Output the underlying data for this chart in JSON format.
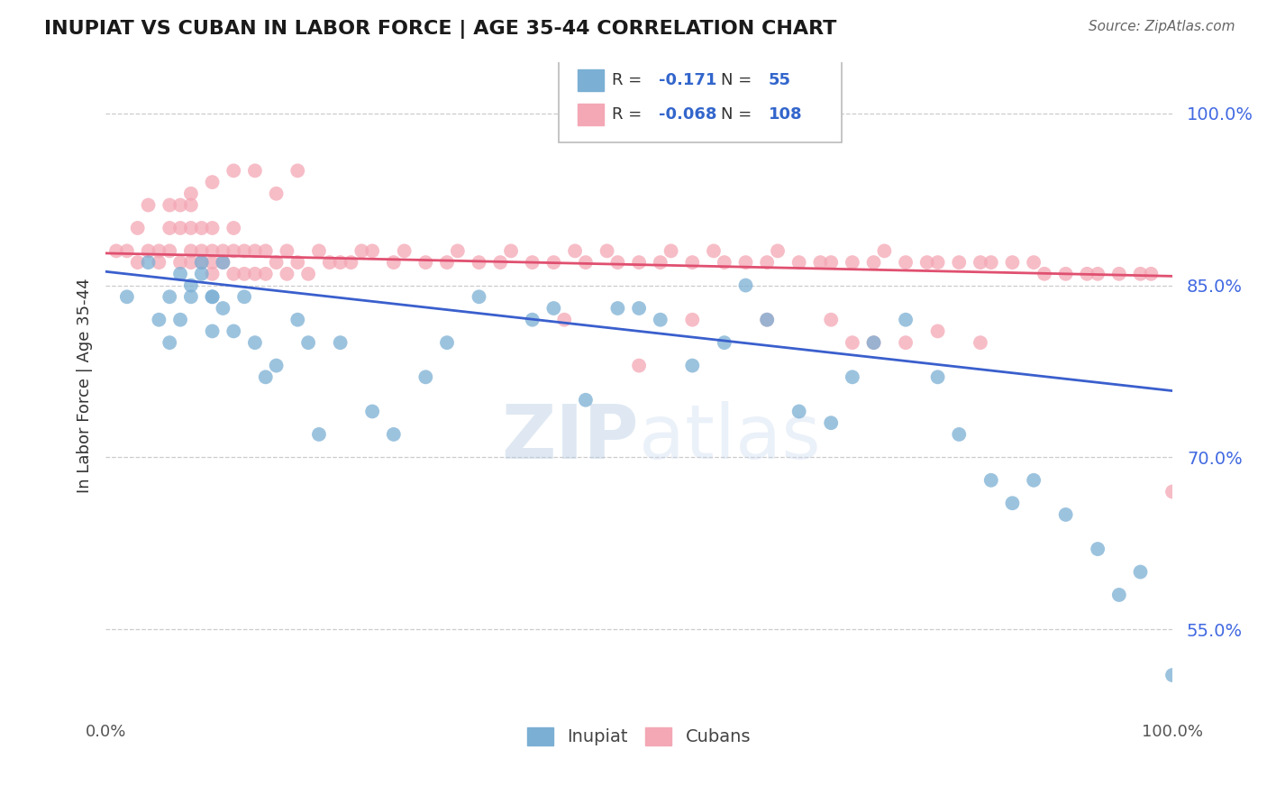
{
  "title": "INUPIAT VS CUBAN IN LABOR FORCE | AGE 35-44 CORRELATION CHART",
  "source": "Source: ZipAtlas.com",
  "ylabel": "In Labor Force | Age 35-44",
  "xlim": [
    0.0,
    1.0
  ],
  "ylim": [
    0.48,
    1.045
  ],
  "yticks": [
    0.55,
    0.7,
    0.85,
    1.0
  ],
  "ytick_labels": [
    "55.0%",
    "70.0%",
    "85.0%",
    "100.0%"
  ],
  "watermark": "ZIPatlas",
  "legend_r1": "-0.171",
  "legend_n1": "55",
  "legend_r2": "-0.068",
  "legend_n2": "108",
  "blue_color": "#7bafd4",
  "pink_color": "#f4a7b5",
  "trend_blue": "#3a5fcd",
  "trend_pink": "#e05070",
  "blue_trend_start": 0.862,
  "blue_trend_end": 0.758,
  "pink_trend_start": 0.878,
  "pink_trend_end": 0.858,
  "inupiat_x": [
    0.02,
    0.04,
    0.05,
    0.06,
    0.06,
    0.07,
    0.07,
    0.08,
    0.08,
    0.09,
    0.09,
    0.1,
    0.1,
    0.1,
    0.11,
    0.11,
    0.12,
    0.13,
    0.14,
    0.15,
    0.16,
    0.18,
    0.19,
    0.2,
    0.22,
    0.25,
    0.27,
    0.3,
    0.32,
    0.35,
    0.4,
    0.42,
    0.45,
    0.48,
    0.5,
    0.52,
    0.55,
    0.58,
    0.6,
    0.62,
    0.65,
    0.68,
    0.7,
    0.72,
    0.75,
    0.78,
    0.8,
    0.83,
    0.85,
    0.87,
    0.9,
    0.93,
    0.95,
    0.97,
    1.0
  ],
  "inupiat_y": [
    0.84,
    0.87,
    0.82,
    0.84,
    0.8,
    0.86,
    0.82,
    0.85,
    0.84,
    0.87,
    0.86,
    0.84,
    0.81,
    0.84,
    0.83,
    0.87,
    0.81,
    0.84,
    0.8,
    0.77,
    0.78,
    0.82,
    0.8,
    0.72,
    0.8,
    0.74,
    0.72,
    0.77,
    0.8,
    0.84,
    0.82,
    0.83,
    0.75,
    0.83,
    0.83,
    0.82,
    0.78,
    0.8,
    0.85,
    0.82,
    0.74,
    0.73,
    0.77,
    0.8,
    0.82,
    0.77,
    0.72,
    0.68,
    0.66,
    0.68,
    0.65,
    0.62,
    0.58,
    0.6,
    0.51
  ],
  "cuban_x": [
    0.01,
    0.02,
    0.03,
    0.03,
    0.04,
    0.04,
    0.05,
    0.05,
    0.06,
    0.06,
    0.06,
    0.07,
    0.07,
    0.07,
    0.08,
    0.08,
    0.08,
    0.08,
    0.09,
    0.09,
    0.09,
    0.1,
    0.1,
    0.1,
    0.1,
    0.11,
    0.11,
    0.12,
    0.12,
    0.12,
    0.13,
    0.13,
    0.14,
    0.14,
    0.15,
    0.15,
    0.16,
    0.17,
    0.17,
    0.18,
    0.19,
    0.2,
    0.21,
    0.22,
    0.23,
    0.24,
    0.25,
    0.27,
    0.28,
    0.3,
    0.32,
    0.33,
    0.35,
    0.37,
    0.38,
    0.4,
    0.42,
    0.44,
    0.45,
    0.47,
    0.48,
    0.5,
    0.52,
    0.53,
    0.55,
    0.57,
    0.58,
    0.6,
    0.62,
    0.63,
    0.65,
    0.67,
    0.68,
    0.7,
    0.72,
    0.73,
    0.75,
    0.77,
    0.78,
    0.8,
    0.82,
    0.83,
    0.85,
    0.87,
    0.88,
    0.9,
    0.92,
    0.93,
    0.95,
    0.97,
    0.98,
    1.0,
    0.08,
    0.1,
    0.12,
    0.14,
    0.16,
    0.18,
    0.5,
    0.7,
    0.43,
    0.55,
    0.62,
    0.68,
    0.72,
    0.75,
    0.78,
    0.82
  ],
  "cuban_y": [
    0.88,
    0.88,
    0.87,
    0.9,
    0.88,
    0.92,
    0.88,
    0.87,
    0.9,
    0.88,
    0.92,
    0.9,
    0.87,
    0.92,
    0.9,
    0.88,
    0.87,
    0.92,
    0.9,
    0.88,
    0.87,
    0.9,
    0.88,
    0.87,
    0.86,
    0.88,
    0.87,
    0.9,
    0.88,
    0.86,
    0.88,
    0.86,
    0.88,
    0.86,
    0.88,
    0.86,
    0.87,
    0.88,
    0.86,
    0.87,
    0.86,
    0.88,
    0.87,
    0.87,
    0.87,
    0.88,
    0.88,
    0.87,
    0.88,
    0.87,
    0.87,
    0.88,
    0.87,
    0.87,
    0.88,
    0.87,
    0.87,
    0.88,
    0.87,
    0.88,
    0.87,
    0.87,
    0.87,
    0.88,
    0.87,
    0.88,
    0.87,
    0.87,
    0.87,
    0.88,
    0.87,
    0.87,
    0.87,
    0.87,
    0.87,
    0.88,
    0.87,
    0.87,
    0.87,
    0.87,
    0.87,
    0.87,
    0.87,
    0.87,
    0.86,
    0.86,
    0.86,
    0.86,
    0.86,
    0.86,
    0.86,
    0.67,
    0.93,
    0.94,
    0.95,
    0.95,
    0.93,
    0.95,
    0.78,
    0.8,
    0.82,
    0.82,
    0.82,
    0.82,
    0.8,
    0.8,
    0.81,
    0.8
  ]
}
